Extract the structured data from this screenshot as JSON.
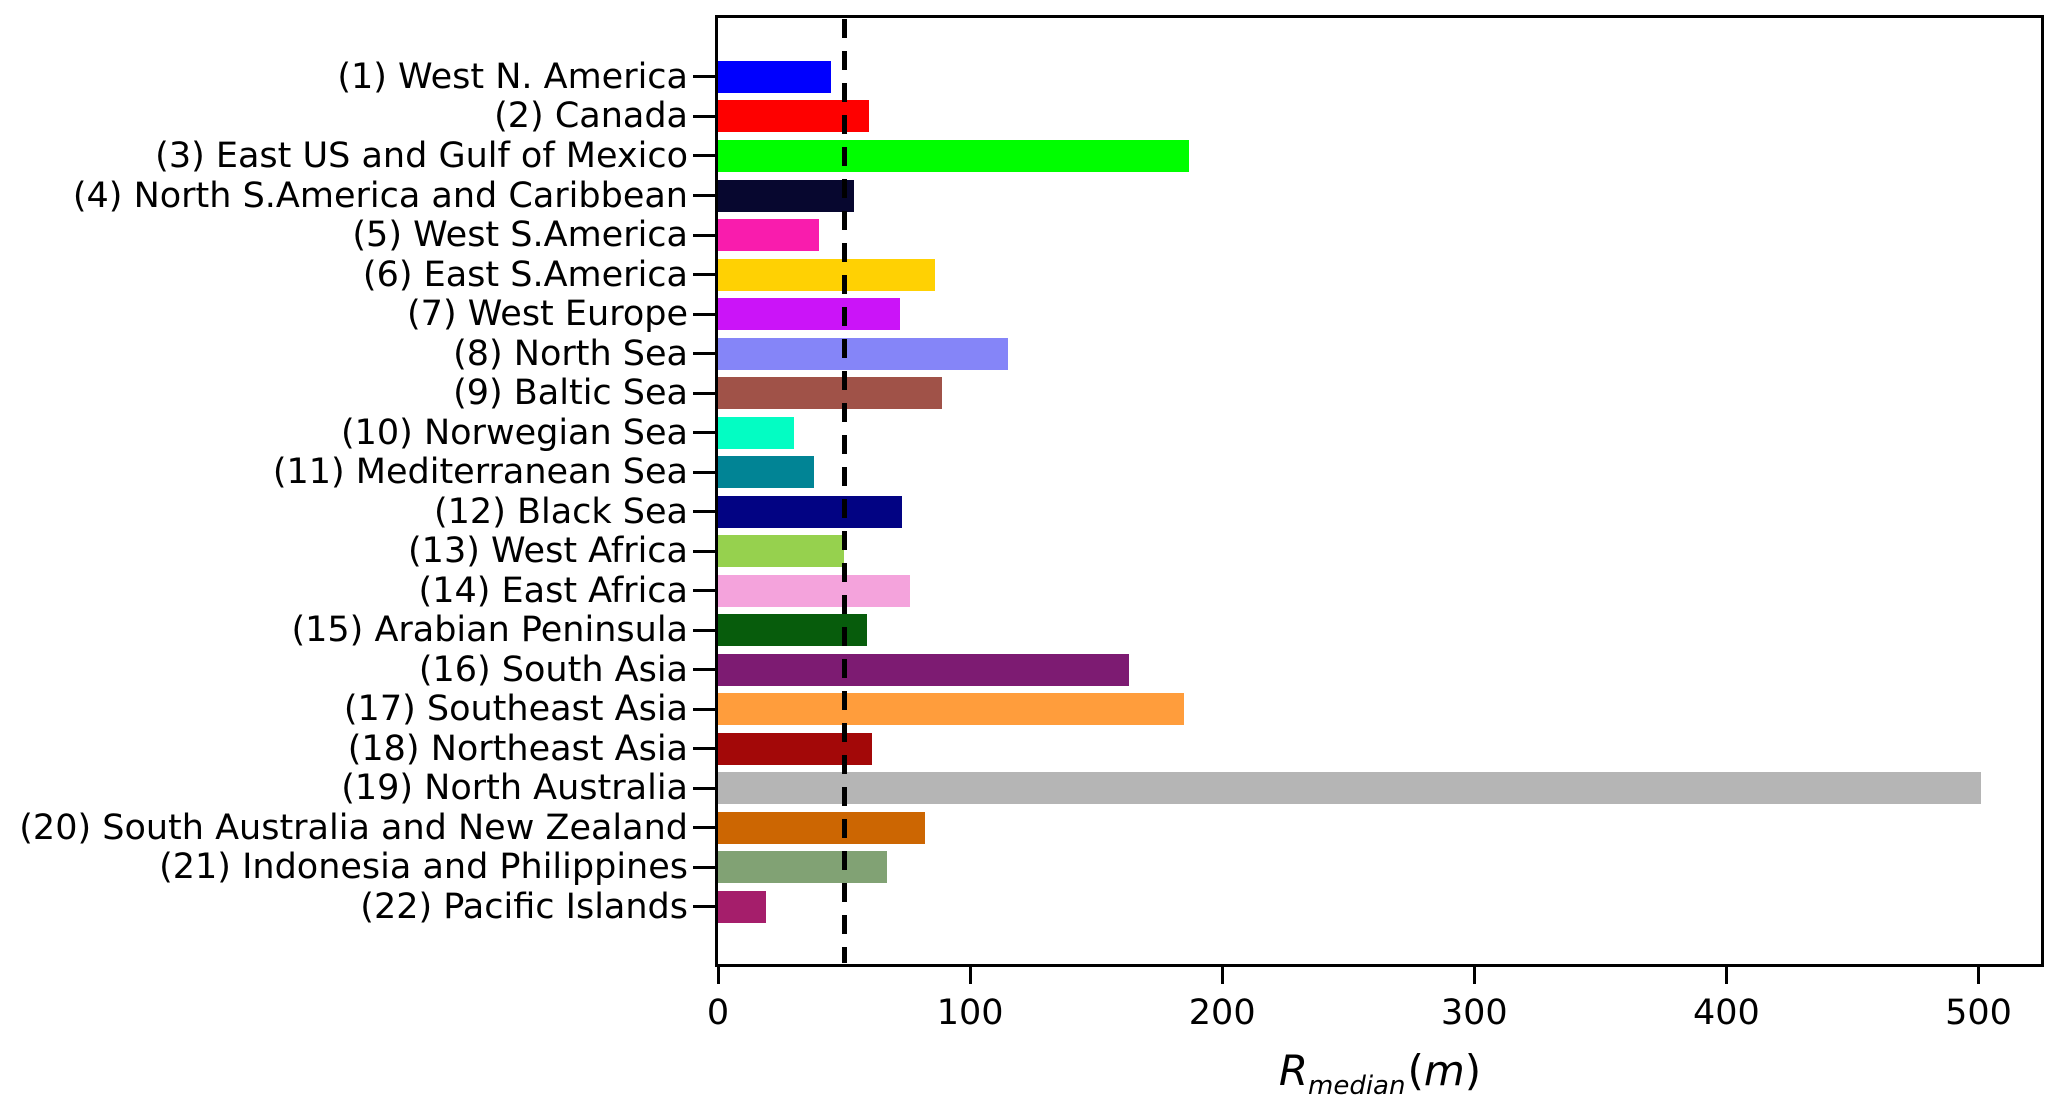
{
  "chart_data": {
    "type": "bar",
    "orientation": "horizontal",
    "title": "",
    "xlabel": {
      "symbol": "R",
      "subscript": "median",
      "open_paren": "(",
      "unit": "m",
      "close_paren": ")"
    },
    "categories": [
      "(1) West N. America",
      "(2) Canada",
      "(3) East US and Gulf of Mexico",
      "(4) North S.America and Caribbean",
      "(5) West S.America",
      "(6) East S.America",
      "(7) West Europe",
      "(8) North Sea",
      "(9) Baltic Sea",
      "(10) Norwegian Sea",
      "(11) Mediterranean Sea",
      "(12) Black Sea",
      "(13) West Africa",
      "(14) East Africa",
      "(15) Arabian Peninsula",
      "(16) South Asia",
      "(17) Southeast Asia",
      "(18) Northeast Asia",
      "(19) North Australia",
      "(20) South Australia and New Zealand",
      "(21) Indonesia and Philippines",
      "(22) Pacific Islands"
    ],
    "values": [
      45,
      60,
      187,
      54,
      40,
      86,
      72,
      115,
      89,
      30,
      38,
      73,
      50,
      76,
      59,
      163,
      185,
      61,
      501,
      82,
      67,
      19
    ],
    "colors": [
      "#0000FE",
      "#FE0000",
      "#00FE00",
      "#07072F",
      "#F91CAD",
      "#FFD103",
      "#CB14F8",
      "#8585F8",
      "#A05248",
      "#03FDC3",
      "#018495",
      "#020383",
      "#96D14E",
      "#F4A3DC",
      "#075C0C",
      "#7D1B72",
      "#FF9D3C",
      "#A30808",
      "#B5B5B5",
      "#CC6602",
      "#81A274",
      "#A51E6B"
    ],
    "x_ticks": [
      0,
      100,
      200,
      300,
      400,
      500
    ],
    "xlim": [
      0,
      525
    ],
    "reference_line": {
      "x": 50,
      "style": "dashed",
      "color": "#000000"
    },
    "grid": false,
    "legend": false
  }
}
